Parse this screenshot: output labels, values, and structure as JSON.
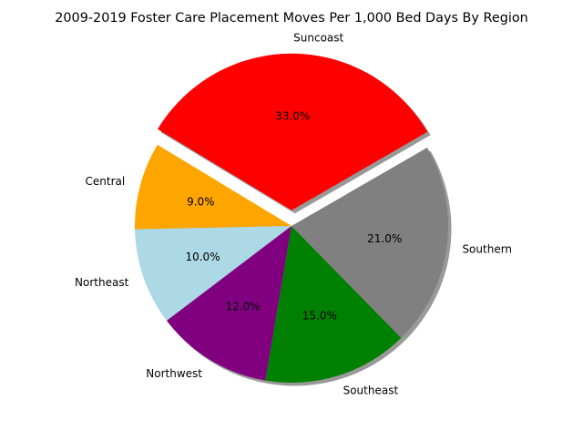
{
  "chart_data": {
    "type": "pie",
    "title": "2009-2019 Foster Care Placement Moves Per 1,000 Bed Days By Region",
    "slices": [
      {
        "label": "Suncoast",
        "value": 33.0,
        "percent_label": "33.0%",
        "color": "#ff0000",
        "exploded": true
      },
      {
        "label": "Central",
        "value": 9.0,
        "percent_label": "9.0%",
        "color": "#ffa500",
        "exploded": false
      },
      {
        "label": "Northeast",
        "value": 10.0,
        "percent_label": "10.0%",
        "color": "#add8e6",
        "exploded": false
      },
      {
        "label": "Northwest",
        "value": 12.0,
        "percent_label": "12.0%",
        "color": "#800080",
        "exploded": false
      },
      {
        "label": "Southeast",
        "value": 15.0,
        "percent_label": "15.0%",
        "color": "#008000",
        "exploded": false
      },
      {
        "label": "Southern",
        "value": 21.0,
        "percent_label": "21.0%",
        "color": "#808080",
        "exploded": false
      }
    ],
    "start_angle_deg": 30,
    "direction": "counterclockwise",
    "shadow": true
  }
}
